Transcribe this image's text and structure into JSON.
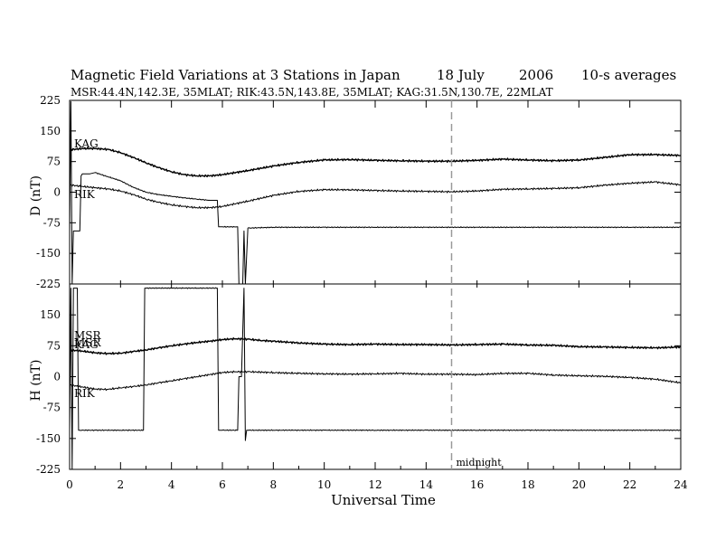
{
  "header": {
    "title": "Magnetic Field Variations at 3 Stations in Japan",
    "date_day": "18 July",
    "date_year": "2006",
    "averaging": "10-s averages",
    "stations": "MSR:44.4N,142.3E, 35MLAT;  RIK:43.5N,143.8E, 35MLAT;  KAG:31.5N,130.7E, 22MLAT"
  },
  "chart_data": {
    "type": "line",
    "xlabel": "Universal Time",
    "xlim": [
      0,
      24
    ],
    "x_ticks": [
      0,
      2,
      4,
      6,
      8,
      10,
      12,
      14,
      16,
      18,
      20,
      22,
      24
    ],
    "midnight_marker": {
      "x": 15,
      "label": "midnight",
      "color": "#999999"
    },
    "panels": [
      {
        "id": "D",
        "ylabel": "D (nT)",
        "ylim": [
          -225,
          225
        ],
        "y_ticks": [
          225,
          150,
          75,
          0,
          -75,
          -150,
          -225
        ],
        "series": [
          {
            "name": "KAG",
            "x": [
              0,
              0.5,
              1,
              1.5,
              2,
              2.5,
              3,
              3.5,
              4,
              4.5,
              5,
              5.5,
              6,
              7,
              8,
              9,
              10,
              11,
              12,
              13,
              14,
              15,
              16,
              17,
              18,
              19,
              20,
              21,
              22,
              23,
              24
            ],
            "values": [
              104,
              107,
              107,
              105,
              97,
              85,
              72,
              60,
              50,
              43,
              40,
              40,
              43,
              53,
              64,
              73,
              79,
              80,
              78,
              77,
              76,
              76,
              78,
              81,
              79,
              77,
              79,
              85,
              92,
              92,
              90
            ]
          },
          {
            "name": "RIK",
            "x": [
              0,
              0.5,
              1,
              1.5,
              2,
              2.5,
              3,
              3.5,
              4,
              4.5,
              5,
              5.5,
              6,
              7,
              8,
              9,
              10,
              11,
              12,
              13,
              14,
              15,
              16,
              17,
              18,
              19,
              20,
              21,
              22,
              23,
              24
            ],
            "values": [
              18,
              14,
              11,
              8,
              3,
              -6,
              -17,
              -25,
              -31,
              -35,
              -38,
              -38,
              -35,
              -22,
              -8,
              2,
              6,
              6,
              4,
              3,
              2,
              1,
              3,
              7,
              8,
              9,
              11,
              17,
              22,
              25,
              18
            ]
          },
          {
            "name": "MSR",
            "x": [
              0,
              0.05,
              0.1,
              0.15,
              0.3,
              0.4,
              0.45,
              0.5,
              0.8,
              1,
              1.5,
              2,
              2.5,
              3,
              3.5,
              4,
              4.5,
              5,
              5.5,
              5.8,
              5.85,
              6,
              6.6,
              6.65,
              6.8,
              6.85,
              6.9,
              7,
              8,
              10,
              12,
              14,
              16,
              18,
              20,
              22,
              24
            ],
            "values": [
              -95,
              222,
              -225,
              -95,
              -95,
              -95,
              40,
              45,
              45,
              48,
              38,
              28,
              12,
              0,
              -6,
              -10,
              -14,
              -17,
              -20,
              -20,
              -85,
              -85,
              -85,
              -225,
              -225,
              -95,
              -225,
              -88,
              -86,
              -86,
              -86,
              -86,
              -86,
              -86,
              -86,
              -86,
              -86
            ]
          }
        ]
      },
      {
        "id": "H",
        "ylabel": "H (nT)",
        "ylim": [
          -225,
          225
        ],
        "y_ticks": [
          225,
          150,
          75,
          0,
          -75,
          -150,
          -225
        ],
        "series": [
          {
            "name": "MSR",
            "x": [
              0,
              0.05,
              0.1,
              0.15,
              0.3,
              0.35,
              0.4,
              1,
              2,
              2.9,
              2.95,
              3,
              4,
              5,
              5.8,
              5.85,
              6,
              6.6,
              6.65,
              6.75,
              6.85,
              6.9,
              6.95,
              7,
              8,
              10,
              12,
              14,
              16,
              18,
              20,
              22,
              24
            ],
            "values": [
              -130,
              215,
              -225,
              215,
              215,
              -130,
              -130,
              -130,
              -130,
              -130,
              215,
              215,
              215,
              215,
              215,
              -130,
              -130,
              -130,
              0,
              0,
              215,
              -155,
              -130,
              -130,
              -130,
              -130,
              -130,
              -130,
              -130,
              -130,
              -130,
              -130,
              -130
            ]
          },
          {
            "name": "KAG",
            "x": [
              0,
              0.5,
              1,
              1.5,
              2,
              2.5,
              3,
              3.5,
              4,
              4.5,
              5,
              5.5,
              6,
              6.5,
              7,
              7.5,
              8,
              9,
              10,
              11,
              12,
              13,
              14,
              15,
              16,
              17,
              18,
              19,
              20,
              21,
              22,
              23,
              24
            ],
            "values": [
              65,
              62,
              58,
              56,
              57,
              61,
              65,
              70,
              75,
              79,
              83,
              86,
              90,
              92,
              91,
              88,
              86,
              82,
              79,
              78,
              79,
              78,
              78,
              77,
              78,
              79,
              77,
              76,
              73,
              72,
              71,
              70,
              72
            ]
          },
          {
            "name": "RIK",
            "x": [
              0,
              0.5,
              1,
              1.5,
              2,
              2.5,
              3,
              3.5,
              4,
              4.5,
              5,
              5.5,
              6,
              6.5,
              7,
              8,
              9,
              10,
              11,
              12,
              13,
              14,
              15,
              16,
              17,
              18,
              19,
              20,
              21,
              22,
              23,
              24
            ],
            "values": [
              -20,
              -25,
              -30,
              -31,
              -27,
              -24,
              -20,
              -15,
              -10,
              -5,
              0,
              5,
              10,
              12,
              12,
              10,
              8,
              7,
              6,
              7,
              8,
              6,
              6,
              5,
              8,
              8,
              4,
              2,
              1,
              -2,
              -6,
              -15
            ]
          }
        ],
        "series_labels": [
          "MSR",
          "MSR",
          "KAG",
          "RIK"
        ]
      }
    ],
    "series_labels_D": [
      "KAG",
      "RIK"
    ]
  }
}
